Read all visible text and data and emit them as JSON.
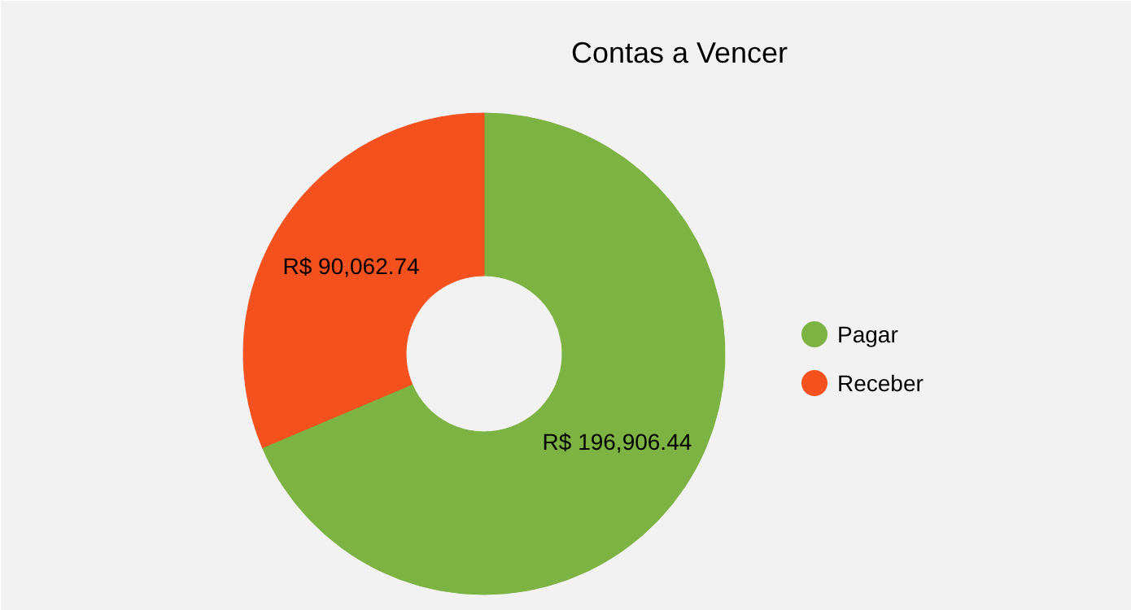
{
  "chart_data": {
    "type": "donut",
    "title": "Contas a Vencer",
    "categories": [
      "Pagar",
      "Receber"
    ],
    "values": [
      196906.44,
      90062.74
    ],
    "colors": [
      "#7cb342",
      "#f4511e"
    ],
    "value_labels": [
      "R$ 196,906.44",
      "R$ 90,062.74"
    ],
    "legend": "right"
  }
}
